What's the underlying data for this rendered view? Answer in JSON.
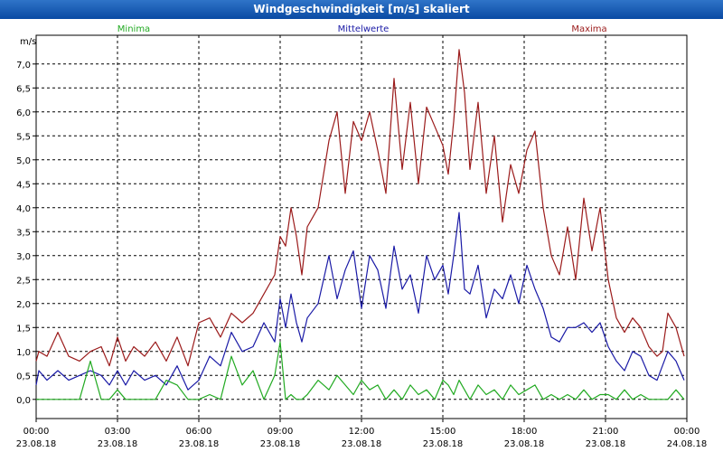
{
  "window": {
    "title": "Windgeschwindigkeit [m/s] skaliert"
  },
  "colors": {
    "minima": "#22aa22",
    "mittelwerte": "#1a1aa6",
    "maxima": "#9b1b1b",
    "grid": "#000000",
    "titlebar": "#1558b5"
  },
  "chart_data": {
    "type": "line",
    "title": "Windgeschwindigkeit [m/s] skaliert",
    "ylabel": "m/s",
    "xlabel": "",
    "ylim": [
      -0.4,
      7.6
    ],
    "xlim": [
      0,
      24
    ],
    "grid": true,
    "legend": [
      "Minima",
      "Mittelwerte",
      "Maxima"
    ],
    "y_ticks": [
      "0,0",
      "0,5",
      "1,0",
      "1,5",
      "2,0",
      "2,5",
      "3,0",
      "3,5",
      "4,0",
      "4,5",
      "5,0",
      "5,5",
      "6,0",
      "6,5",
      "7,0"
    ],
    "y_tick_values": [
      0,
      0.5,
      1,
      1.5,
      2,
      2.5,
      3,
      3.5,
      4,
      4.5,
      5,
      5.5,
      6,
      6.5,
      7
    ],
    "x_ticks": [
      {
        "time": "00:00",
        "date": "23.08.18"
      },
      {
        "time": "03:00",
        "date": "23.08.18"
      },
      {
        "time": "06:00",
        "date": "23.08.18"
      },
      {
        "time": "09:00",
        "date": "23.08.18"
      },
      {
        "time": "12:00",
        "date": "23.08.18"
      },
      {
        "time": "15:00",
        "date": "23.08.18"
      },
      {
        "time": "18:00",
        "date": "23.08.18"
      },
      {
        "time": "21:00",
        "date": "23.08.18"
      },
      {
        "time": "00:00",
        "date": "24.08.18"
      }
    ],
    "x_tick_hours": [
      0,
      3,
      6,
      9,
      12,
      15,
      18,
      21,
      24
    ],
    "x_hours": [
      0,
      0.1,
      0.4,
      0.8,
      1.2,
      1.6,
      2.0,
      2.4,
      2.7,
      3.0,
      3.3,
      3.6,
      4.0,
      4.4,
      4.8,
      5.2,
      5.6,
      6.0,
      6.4,
      6.8,
      7.2,
      7.6,
      8.0,
      8.4,
      8.8,
      9.0,
      9.2,
      9.4,
      9.6,
      9.8,
      10.0,
      10.4,
      10.8,
      11.1,
      11.4,
      11.7,
      12.0,
      12.3,
      12.6,
      12.9,
      13.2,
      13.5,
      13.8,
      14.1,
      14.4,
      14.7,
      15.0,
      15.2,
      15.4,
      15.6,
      15.8,
      16.0,
      16.3,
      16.6,
      16.9,
      17.2,
      17.5,
      17.8,
      18.1,
      18.4,
      18.7,
      19.0,
      19.3,
      19.6,
      19.9,
      20.2,
      20.5,
      20.8,
      21.1,
      21.4,
      21.7,
      22.0,
      22.3,
      22.6,
      22.9,
      23.1,
      23.3,
      23.6,
      23.9
    ],
    "series": [
      {
        "name": "Maxima",
        "values": [
          0.8,
          1.0,
          0.9,
          1.4,
          0.9,
          0.8,
          1.0,
          1.1,
          0.7,
          1.3,
          0.8,
          1.1,
          0.9,
          1.2,
          0.8,
          1.3,
          0.7,
          1.6,
          1.7,
          1.3,
          1.8,
          1.6,
          1.8,
          2.2,
          2.6,
          3.4,
          3.2,
          4.0,
          3.4,
          2.6,
          3.6,
          4.0,
          5.4,
          6.0,
          4.3,
          5.8,
          5.4,
          6.0,
          5.2,
          4.3,
          6.7,
          4.8,
          6.2,
          4.5,
          6.1,
          5.7,
          5.3,
          4.7,
          5.8,
          7.3,
          6.4,
          4.8,
          6.2,
          4.3,
          5.5,
          3.7,
          4.9,
          4.3,
          5.2,
          5.6,
          4.0,
          3.0,
          2.6,
          3.6,
          2.5,
          4.2,
          3.1,
          4.0,
          2.5,
          1.7,
          1.4,
          1.7,
          1.5,
          1.1,
          0.9,
          1.0,
          1.8,
          1.5,
          0.9
        ]
      },
      {
        "name": "Mittelwerte",
        "values": [
          0.3,
          0.6,
          0.4,
          0.6,
          0.4,
          0.5,
          0.6,
          0.5,
          0.3,
          0.6,
          0.3,
          0.6,
          0.4,
          0.5,
          0.3,
          0.7,
          0.2,
          0.4,
          0.9,
          0.7,
          1.4,
          1.0,
          1.1,
          1.6,
          1.2,
          2.1,
          1.5,
          2.2,
          1.6,
          1.2,
          1.7,
          2.0,
          3.0,
          2.1,
          2.7,
          3.1,
          1.9,
          3.0,
          2.7,
          1.9,
          3.2,
          2.3,
          2.6,
          1.8,
          3.0,
          2.5,
          2.8,
          2.2,
          3.0,
          3.9,
          2.3,
          2.2,
          2.8,
          1.7,
          2.3,
          2.1,
          2.6,
          2.0,
          2.8,
          2.3,
          1.9,
          1.3,
          1.2,
          1.5,
          1.5,
          1.6,
          1.4,
          1.6,
          1.1,
          0.8,
          0.6,
          1.0,
          0.9,
          0.5,
          0.4,
          0.7,
          1.0,
          0.8,
          0.4
        ]
      },
      {
        "name": "Minima",
        "values": [
          0.0,
          0.0,
          0.0,
          0.0,
          0.0,
          0.0,
          0.8,
          0.0,
          0.0,
          0.2,
          0.0,
          0.0,
          0.0,
          0.0,
          0.4,
          0.3,
          0.0,
          0.0,
          0.1,
          0.0,
          0.9,
          0.3,
          0.6,
          0.0,
          0.5,
          1.2,
          0.0,
          0.1,
          0.0,
          0.0,
          0.1,
          0.4,
          0.2,
          0.5,
          0.3,
          0.1,
          0.4,
          0.2,
          0.3,
          0.0,
          0.2,
          0.0,
          0.3,
          0.1,
          0.2,
          0.0,
          0.4,
          0.3,
          0.1,
          0.4,
          0.2,
          0.0,
          0.3,
          0.1,
          0.2,
          0.0,
          0.3,
          0.1,
          0.2,
          0.3,
          0.0,
          0.1,
          0.0,
          0.1,
          0.0,
          0.2,
          0.0,
          0.1,
          0.1,
          0.0,
          0.2,
          0.0,
          0.1,
          0.0,
          0.0,
          0.0,
          0.0,
          0.2,
          0.0
        ]
      }
    ]
  }
}
